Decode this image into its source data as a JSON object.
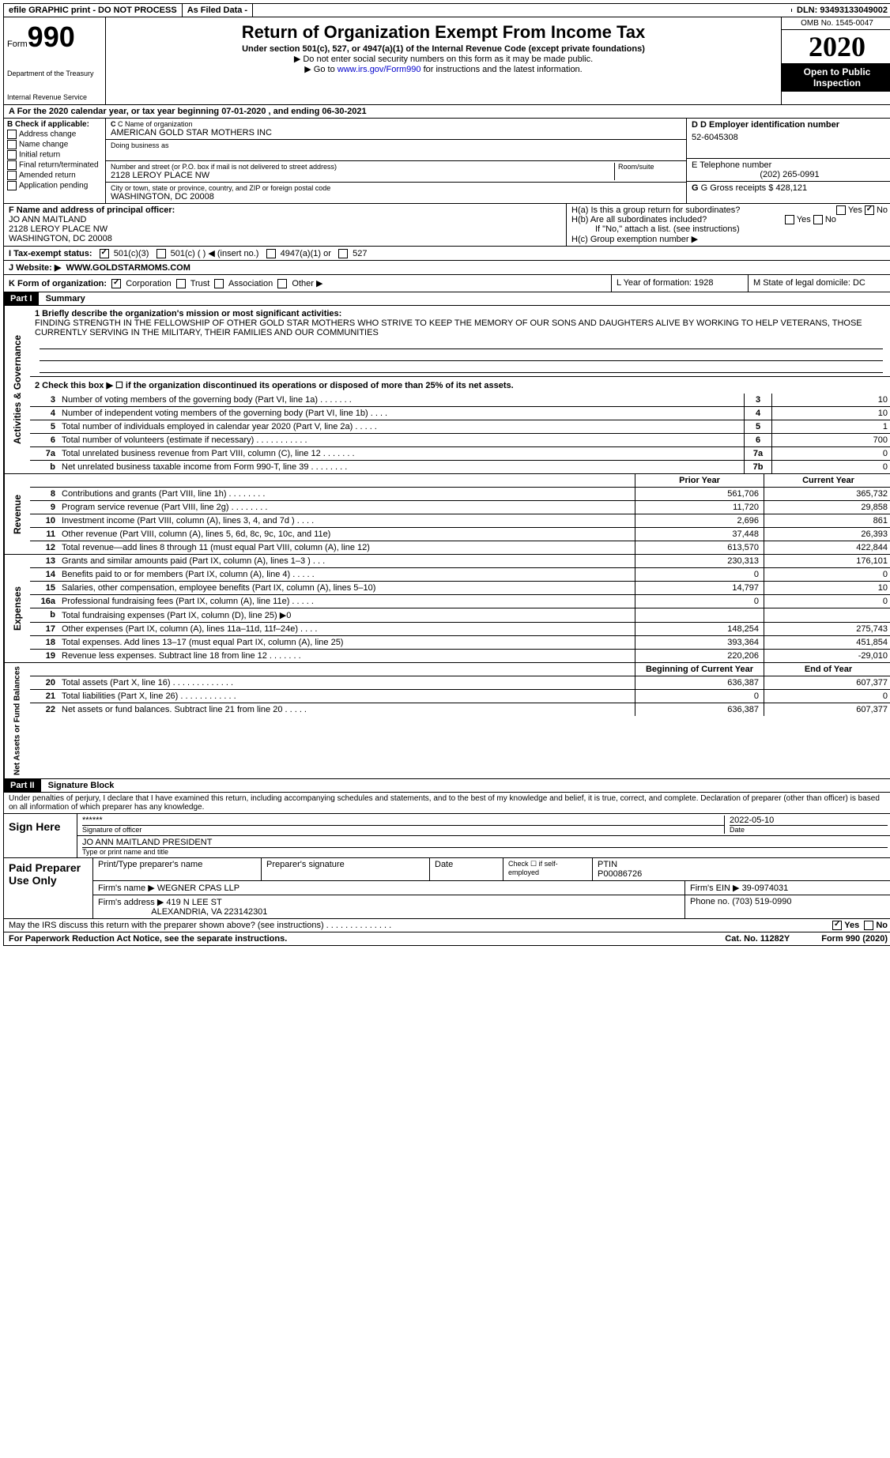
{
  "top": {
    "efile": "efile GRAPHIC print - DO NOT PROCESS",
    "asfiled": "As Filed Data -",
    "dln": "DLN: 93493133049002"
  },
  "header": {
    "form_label": "Form",
    "form_num": "990",
    "dept1": "Department of the Treasury",
    "dept2": "Internal Revenue Service",
    "title": "Return of Organization Exempt From Income Tax",
    "sub1": "Under section 501(c), 527, or 4947(a)(1) of the Internal Revenue Code (except private foundations)",
    "sub2": "▶ Do not enter social security numbers on this form as it may be made public.",
    "sub3_pre": "▶ Go to ",
    "sub3_link": "www.irs.gov/Form990",
    "sub3_post": " for instructions and the latest information.",
    "omb": "OMB No. 1545-0047",
    "year": "2020",
    "inspect": "Open to Public Inspection"
  },
  "line_a": "A  For the 2020 calendar year, or tax year beginning 07-01-2020  , and ending 06-30-2021",
  "section_b": {
    "b_label": "B Check if applicable:",
    "checks": [
      "Address change",
      "Name change",
      "Initial return",
      "Final return/terminated",
      "Amended return",
      "Application pending"
    ],
    "c_label": "C Name of organization",
    "c_val": "AMERICAN GOLD STAR MOTHERS INC",
    "dba_label": "Doing business as",
    "addr_label": "Number and street (or P.O. box if mail is not delivered to street address)",
    "room_label": "Room/suite",
    "addr_val": "2128 LEROY PLACE NW",
    "city_label": "City or town, state or province, country, and ZIP or foreign postal code",
    "city_val": "WASHINGTON, DC  20008",
    "d_label": "D Employer identification number",
    "d_val": "52-6045308",
    "e_label": "E Telephone number",
    "e_val": "(202) 265-0991",
    "g_label": "G Gross receipts $ 428,121"
  },
  "section_fh": {
    "f_label": "F  Name and address of principal officer:",
    "f_name": "JO ANN MAITLAND",
    "f_addr1": "2128 LEROY PLACE NW",
    "f_addr2": "WASHINGTON, DC  20008",
    "ha": "H(a)  Is this a group return for subordinates?",
    "hb": "H(b)  Are all subordinates included?",
    "hb_note": "If \"No,\" attach a list. (see instructions)",
    "hc": "H(c)  Group exemption number ▶",
    "yes": "Yes",
    "no": "No"
  },
  "line_i": {
    "label": "I  Tax-exempt status:",
    "o1": "501(c)(3)",
    "o2": "501(c) (  ) ◀ (insert no.)",
    "o3": "4947(a)(1) or",
    "o4": "527"
  },
  "line_j": {
    "label": "J  Website: ▶",
    "val": "WWW.GOLDSTARMOMS.COM"
  },
  "line_k": {
    "label": "K Form of organization:",
    "o1": "Corporation",
    "o2": "Trust",
    "o3": "Association",
    "o4": "Other ▶",
    "l": "L Year of formation: 1928",
    "m": "M State of legal domicile: DC"
  },
  "part1": {
    "label": "Part I",
    "title": "Summary",
    "q1_label": "1  Briefly describe the organization's mission or most significant activities:",
    "q1_val": "FINDING STRENGTH IN THE FELLOWSHIP OF OTHER GOLD STAR MOTHERS WHO STRIVE TO KEEP THE MEMORY OF OUR SONS AND DAUGHTERS ALIVE BY WORKING TO HELP VETERANS, THOSE CURRENTLY SERVING IN THE MILITARY, THEIR FAMILIES AND OUR COMMUNITIES",
    "q2": "2  Check this box ▶ ☐ if the organization discontinued its operations or disposed of more than 25% of its net assets.",
    "sidelabels": {
      "ag": "Activities & Governance",
      "rev": "Revenue",
      "exp": "Expenses",
      "net": "Net Assets or Fund Balances"
    },
    "rows_single": [
      {
        "n": "3",
        "desc": "Number of voting members of the governing body (Part VI, line 1a)  .  .  .  .  .  .  .",
        "key": "3",
        "val": "10"
      },
      {
        "n": "4",
        "desc": "Number of independent voting members of the governing body (Part VI, line 1b)  .  .  .  .",
        "key": "4",
        "val": "10"
      },
      {
        "n": "5",
        "desc": "Total number of individuals employed in calendar year 2020 (Part V, line 2a)  .  .  .  .  .",
        "key": "5",
        "val": "1"
      },
      {
        "n": "6",
        "desc": "Total number of volunteers (estimate if necessary)  .  .  .  .  .  .  .  .  .  .  .",
        "key": "6",
        "val": "700"
      },
      {
        "n": "7a",
        "desc": "Total unrelated business revenue from Part VIII, column (C), line 12  .  .  .  .  .  .  .",
        "key": "7a",
        "val": "0"
      },
      {
        "n": "b",
        "desc": "Net unrelated business taxable income from Form 990-T, line 39  .  .  .  .  .  .  .  .",
        "key": "7b",
        "val": "0"
      }
    ],
    "col_headers": {
      "c1": "Prior Year",
      "c2": "Current Year"
    },
    "rows_rev": [
      {
        "n": "8",
        "desc": "Contributions and grants (Part VIII, line 1h)  .  .  .  .  .  .  .  .",
        "c1": "561,706",
        "c2": "365,732"
      },
      {
        "n": "9",
        "desc": "Program service revenue (Part VIII, line 2g)  .  .  .  .  .  .  .  .",
        "c1": "11,720",
        "c2": "29,858"
      },
      {
        "n": "10",
        "desc": "Investment income (Part VIII, column (A), lines 3, 4, and 7d )  .  .  .  .",
        "c1": "2,696",
        "c2": "861"
      },
      {
        "n": "11",
        "desc": "Other revenue (Part VIII, column (A), lines 5, 6d, 8c, 9c, 10c, and 11e)",
        "c1": "37,448",
        "c2": "26,393"
      },
      {
        "n": "12",
        "desc": "Total revenue—add lines 8 through 11 (must equal Part VIII, column (A), line 12)",
        "c1": "613,570",
        "c2": "422,844"
      }
    ],
    "rows_exp": [
      {
        "n": "13",
        "desc": "Grants and similar amounts paid (Part IX, column (A), lines 1–3 )  .  .  .",
        "c1": "230,313",
        "c2": "176,101"
      },
      {
        "n": "14",
        "desc": "Benefits paid to or for members (Part IX, column (A), line 4)  .  .  .  .  .",
        "c1": "0",
        "c2": "0"
      },
      {
        "n": "15",
        "desc": "Salaries, other compensation, employee benefits (Part IX, column (A), lines 5–10)",
        "c1": "14,797",
        "c2": "10"
      },
      {
        "n": "16a",
        "desc": "Professional fundraising fees (Part IX, column (A), line 11e)  .  .  .  .  .",
        "c1": "0",
        "c2": "0"
      },
      {
        "n": "b",
        "desc": "Total fundraising expenses (Part IX, column (D), line 25) ▶0",
        "c1": "",
        "c2": ""
      },
      {
        "n": "17",
        "desc": "Other expenses (Part IX, column (A), lines 11a–11d, 11f–24e)  .  .  .  .",
        "c1": "148,254",
        "c2": "275,743"
      },
      {
        "n": "18",
        "desc": "Total expenses. Add lines 13–17 (must equal Part IX, column (A), line 25)",
        "c1": "393,364",
        "c2": "451,854"
      },
      {
        "n": "19",
        "desc": "Revenue less expenses. Subtract line 18 from line 12  .  .  .  .  .  .  .",
        "c1": "220,206",
        "c2": "-29,010"
      }
    ],
    "net_headers": {
      "c1": "Beginning of Current Year",
      "c2": "End of Year"
    },
    "rows_net": [
      {
        "n": "20",
        "desc": "Total assets (Part X, line 16)  .  .  .  .  .  .  .  .  .  .  .  .  .",
        "c1": "636,387",
        "c2": "607,377"
      },
      {
        "n": "21",
        "desc": "Total liabilities (Part X, line 26)  .  .  .  .  .  .  .  .  .  .  .  .",
        "c1": "0",
        "c2": "0"
      },
      {
        "n": "22",
        "desc": "Net assets or fund balances. Subtract line 21 from line 20  .  .  .  .  .",
        "c1": "636,387",
        "c2": "607,377"
      }
    ]
  },
  "part2": {
    "label": "Part II",
    "title": "Signature Block",
    "decl": "Under penalties of perjury, I declare that I have examined this return, including accompanying schedules and statements, and to the best of my knowledge and belief, it is true, correct, and complete. Declaration of preparer (other than officer) is based on all information of which preparer has any knowledge.",
    "sign_here": "Sign Here",
    "stars": "******",
    "sig_officer": "Signature of officer",
    "date": "2022-05-10",
    "date_label": "Date",
    "name_title": "JO ANN MAITLAND  PRESIDENT",
    "type_label": "Type or print name and title",
    "paid": "Paid Preparer Use Only",
    "p_name_label": "Print/Type preparer's name",
    "p_sig_label": "Preparer's signature",
    "p_date_label": "Date",
    "p_check": "Check ☐ if self-employed",
    "ptin_label": "PTIN",
    "ptin": "P00086726",
    "firm_name_label": "Firm's name    ▶",
    "firm_name": "WEGNER CPAS LLP",
    "firm_ein_label": "Firm's EIN ▶",
    "firm_ein": "39-0974031",
    "firm_addr_label": "Firm's address ▶",
    "firm_addr1": "419 N LEE ST",
    "firm_addr2": "ALEXANDRIA, VA  223142301",
    "phone_label": "Phone no.",
    "phone": "(703) 519-0990",
    "discuss": "May the IRS discuss this return with the preparer shown above? (see instructions)  .  .  .  .  .  .  .  .  .  .  .  .  .  .",
    "yes": "Yes",
    "no": "No"
  },
  "footer": {
    "left": "For Paperwork Reduction Act Notice, see the separate instructions.",
    "mid": "Cat. No. 11282Y",
    "right": "Form 990 (2020)"
  }
}
